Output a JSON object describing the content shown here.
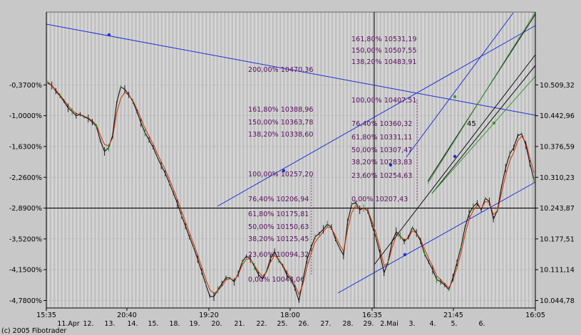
{
  "chart_data": {
    "type": "line",
    "footer_text": "(c) 2005 Fibotrader",
    "time_labels": [
      "15:35",
      "20:40",
      "19:20",
      "18:00",
      "16:35",
      "21:45",
      "16:05"
    ],
    "date_labels": [
      "11.Apr",
      "12.",
      "13.",
      "14.",
      "15.",
      "18.",
      "19.",
      "20.",
      "21.",
      "22.",
      "25.",
      "26.",
      "27.",
      "28.",
      "29.",
      "2.Mai",
      "3.",
      "4.",
      "5.",
      "6."
    ],
    "left_axis": {
      "ticks": [
        "-0,3700%",
        "-1,0000%",
        "-1,6300%",
        "-2,2600%",
        "-2,8900%",
        "-3,5200%",
        "-4,1500%",
        "-4,7800%"
      ],
      "values": [
        -0.37,
        -1.0,
        -1.63,
        -2.26,
        -2.89,
        -3.52,
        -4.15,
        -4.78
      ]
    },
    "right_axis": {
      "ticks": [
        "10.509,32",
        "10.442,96",
        "10.376,59",
        "10.310,23",
        "10.243,87",
        "10.177,51",
        "10.111,14",
        "10.044,78"
      ],
      "values": [
        10509.32,
        10442.96,
        10376.59,
        10310.23,
        10243.87,
        10177.51,
        10111.14,
        10044.78
      ],
      "ylim": [
        10020,
        10550
      ]
    },
    "reference_level": 10243.87,
    "wave_label": "45",
    "fib_sets": [
      {
        "name": "upper",
        "labels": [
          {
            "text": "161,80% 10531,19",
            "value": 10531.19
          },
          {
            "text": "150,00% 10507,55",
            "value": 10507.55
          },
          {
            "text": "138,20% 10483,91",
            "value": 10483.91
          },
          {
            "text": "100,00% 10407,51",
            "value": 10407.51
          },
          {
            "text": "76,40% 10360,32",
            "value": 10360.32
          },
          {
            "text": "61,80% 10331,11",
            "value": 10331.11
          },
          {
            "text": "50,00% 10307,47",
            "value": 10307.47
          },
          {
            "text": "38,20% 10283,83",
            "value": 10283.83
          },
          {
            "text": "23,60% 10254,63",
            "value": 10254.63
          },
          {
            "text": "0,00% 10207,43",
            "value": 10207.43
          }
        ]
      },
      {
        "name": "lower",
        "labels": [
          {
            "text": "200,00% 10470,36",
            "value": 10470.36
          },
          {
            "text": "161,80% 10388,96",
            "value": 10388.96
          },
          {
            "text": "150,00% 10363,78",
            "value": 10363.78
          },
          {
            "text": "138,20% 10338,60",
            "value": 10338.6
          },
          {
            "text": "100,00% 10257,20",
            "value": 10257.2
          },
          {
            "text": "76,40% 10206,94",
            "value": 10206.94
          },
          {
            "text": "61,80% 10175,81",
            "value": 10175.81
          },
          {
            "text": "50,00% 10150,63",
            "value": 10150.63
          },
          {
            "text": "38,20% 10125,45",
            "value": 10125.45
          },
          {
            "text": "23,60% 10094,32",
            "value": 10094.32
          },
          {
            "text": "0,00% 10044,06",
            "value": 10044.06
          }
        ]
      }
    ],
    "series": [
      {
        "name": "price",
        "color": "#101010",
        "x": [
          0,
          1,
          2,
          3,
          4,
          5,
          6,
          7,
          8,
          9,
          10,
          11,
          12,
          13,
          14,
          15,
          16,
          17,
          18,
          19,
          20,
          21,
          22,
          23,
          24,
          25,
          26,
          27,
          28,
          29,
          30,
          31,
          32,
          33,
          34,
          35,
          36,
          37,
          38,
          39,
          40,
          41,
          42,
          43,
          44,
          45,
          46,
          47,
          48,
          49,
          50,
          51,
          52,
          53,
          54,
          55,
          56,
          57,
          58,
          59,
          60,
          61,
          62,
          63,
          64,
          65,
          66,
          67,
          68,
          69,
          70,
          71,
          72,
          73,
          74,
          75,
          76,
          77,
          78,
          79,
          80,
          81,
          82,
          83,
          84,
          85,
          86,
          87,
          88,
          89,
          90,
          91,
          92,
          93,
          94,
          95,
          96,
          97,
          98,
          99,
          100,
          101,
          102,
          103,
          104,
          105,
          106,
          107,
          108,
          109,
          110,
          111,
          112,
          113,
          114,
          115,
          116,
          117,
          118,
          119,
          120
        ],
        "values": [
          10515,
          10508,
          10496,
          10486,
          10474,
          10460,
          10452,
          10443,
          10446,
          10440,
          10437,
          10429,
          10420,
          10389,
          10366,
          10374,
          10400,
          10470,
          10505,
          10500,
          10488,
          10474,
          10452,
          10428,
          10406,
          10391,
          10375,
          10354,
          10336,
          10319,
          10298,
          10276,
          10254,
          10228,
          10205,
          10181,
          10159,
          10134,
          10107,
          10080,
          10054,
          10053,
          10068,
          10081,
          10094,
          10093,
          10085,
          10102,
          10128,
          10140,
          10135,
          10118,
          10101,
          10091,
          10108,
          10136,
          10150,
          10131,
          10120,
          10100,
          10090,
          10072,
          10044,
          10090,
          10133,
          10159,
          10182,
          10189,
          10198,
          10209,
          10203,
          10177,
          10158,
          10142,
          10214,
          10252,
          10256,
          10240,
          10244,
          10238,
          10208,
          10180,
          10146,
          10104,
          10128,
          10172,
          10193,
          10184,
          10172,
          10181,
          10202,
          10190,
          10173,
          10145,
          10128,
          10111,
          10090,
          10085,
          10078,
          10068,
          10094,
          10126,
          10160,
          10203,
          10232,
          10247,
          10255,
          10240,
          10265,
          10258,
          10220,
          10240,
          10290,
          10330,
          10360,
          10374,
          10400,
          10404,
          10380,
          10340,
          10305
        ]
      },
      {
        "name": "moving-average",
        "color": "#cc3300",
        "values": [
          10512,
          10508,
          10498,
          10488,
          10477,
          10465,
          10455,
          10448,
          10446,
          10442,
          10438,
          10432,
          10423,
          10400,
          10381,
          10378,
          10395,
          10448,
          10480,
          10493,
          10487,
          10476,
          10458,
          10437,
          10416,
          10399,
          10382,
          10362,
          10344,
          10327,
          10306,
          10285,
          10262,
          10238,
          10214,
          10190,
          10167,
          10143,
          10117,
          10091,
          10068,
          10060,
          10066,
          10076,
          10089,
          10092,
          10088,
          10100,
          10121,
          10134,
          10134,
          10121,
          10107,
          10097,
          10106,
          10128,
          10142,
          10133,
          10121,
          10105,
          10094,
          10078,
          10058,
          10081,
          10117,
          10146,
          10171,
          10182,
          10193,
          10203,
          10201,
          10184,
          10166,
          10151,
          10198,
          10234,
          10249,
          10243,
          10243,
          10239,
          10216,
          10190,
          10158,
          10120,
          10126,
          10159,
          10184,
          10183,
          10175,
          10179,
          10195,
          10190,
          10177,
          10155,
          10136,
          10118,
          10098,
          10089,
          10081,
          10072,
          10088,
          10115,
          10147,
          10187,
          10220,
          10239,
          10250,
          10243,
          10258,
          10256,
          10230,
          10238,
          10276,
          10314,
          10345,
          10364,
          10389,
          10399,
          10385,
          10352,
          10320
        ]
      }
    ]
  }
}
